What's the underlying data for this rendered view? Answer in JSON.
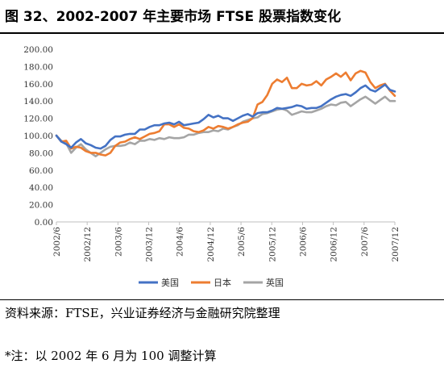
{
  "title": "图 32、2002-2007 年主要市场 FTSE 股票指数变化",
  "source": "资料来源：FTSE，兴业证券经济与金融研究院整理",
  "note": "*注：以 2002 年 6 月为 100 调整计算",
  "chart_data": {
    "type": "line",
    "title": "",
    "xlabel": "",
    "ylabel": "",
    "ylim": [
      0,
      200
    ],
    "yticks": [
      "0.00",
      "20.00",
      "40.00",
      "60.00",
      "80.00",
      "100.00",
      "120.00",
      "140.00",
      "160.00",
      "180.00",
      "200.00"
    ],
    "xticks": [
      "2002/6",
      "2002/12",
      "2003/6",
      "2003/12",
      "2004/6",
      "2004/12",
      "2005/6",
      "2005/12",
      "2006/6",
      "2006/12",
      "2007/6",
      "2007/12"
    ],
    "grid": false,
    "legend": "bottom",
    "series": [
      {
        "name": "美国",
        "color": "#4472C4",
        "values": [
          100,
          93,
          90,
          86,
          92,
          96,
          91,
          89,
          86,
          85,
          88,
          95,
          99,
          99,
          101,
          102,
          102,
          107,
          107,
          110,
          112,
          112,
          114,
          115,
          113,
          116,
          112,
          113,
          114,
          115,
          119,
          124,
          121,
          123,
          120,
          120,
          117,
          120,
          123,
          125,
          122,
          126,
          127,
          127,
          129,
          132,
          131,
          132,
          133,
          135,
          134,
          131,
          132,
          132,
          134,
          138,
          142,
          145,
          147,
          148,
          146,
          150,
          155,
          158,
          153,
          151,
          155,
          159,
          153,
          151
        ]
      },
      {
        "name": "日本",
        "color": "#ED7D31",
        "values": [
          100,
          93,
          94,
          85,
          87,
          86,
          82,
          80,
          80,
          78,
          77,
          80,
          88,
          92,
          93,
          96,
          98,
          96,
          99,
          102,
          103,
          105,
          113,
          113,
          110,
          113,
          109,
          108,
          105,
          104,
          106,
          110,
          108,
          111,
          110,
          108,
          110,
          113,
          115,
          116,
          120,
          136,
          139,
          147,
          160,
          165,
          162,
          167,
          155,
          155,
          160,
          158,
          159,
          163,
          158,
          165,
          168,
          172,
          168,
          173,
          164,
          172,
          175,
          173,
          162,
          155,
          158,
          160,
          152,
          146
        ]
      },
      {
        "name": "英国",
        "color": "#A5A5A5",
        "values": [
          100,
          94,
          91,
          80,
          86,
          90,
          84,
          80,
          76,
          80,
          84,
          87,
          88,
          88,
          89,
          92,
          90,
          94,
          94,
          96,
          95,
          97,
          96,
          98,
          97,
          97,
          98,
          101,
          101,
          103,
          104,
          104,
          106,
          105,
          108,
          107,
          110,
          112,
          116,
          118,
          120,
          121,
          125,
          126,
          128,
          130,
          131,
          129,
          124,
          126,
          128,
          127,
          127,
          129,
          131,
          134,
          136,
          135,
          138,
          139,
          134,
          138,
          142,
          145,
          141,
          137,
          141,
          145,
          140,
          140
        ]
      }
    ]
  }
}
